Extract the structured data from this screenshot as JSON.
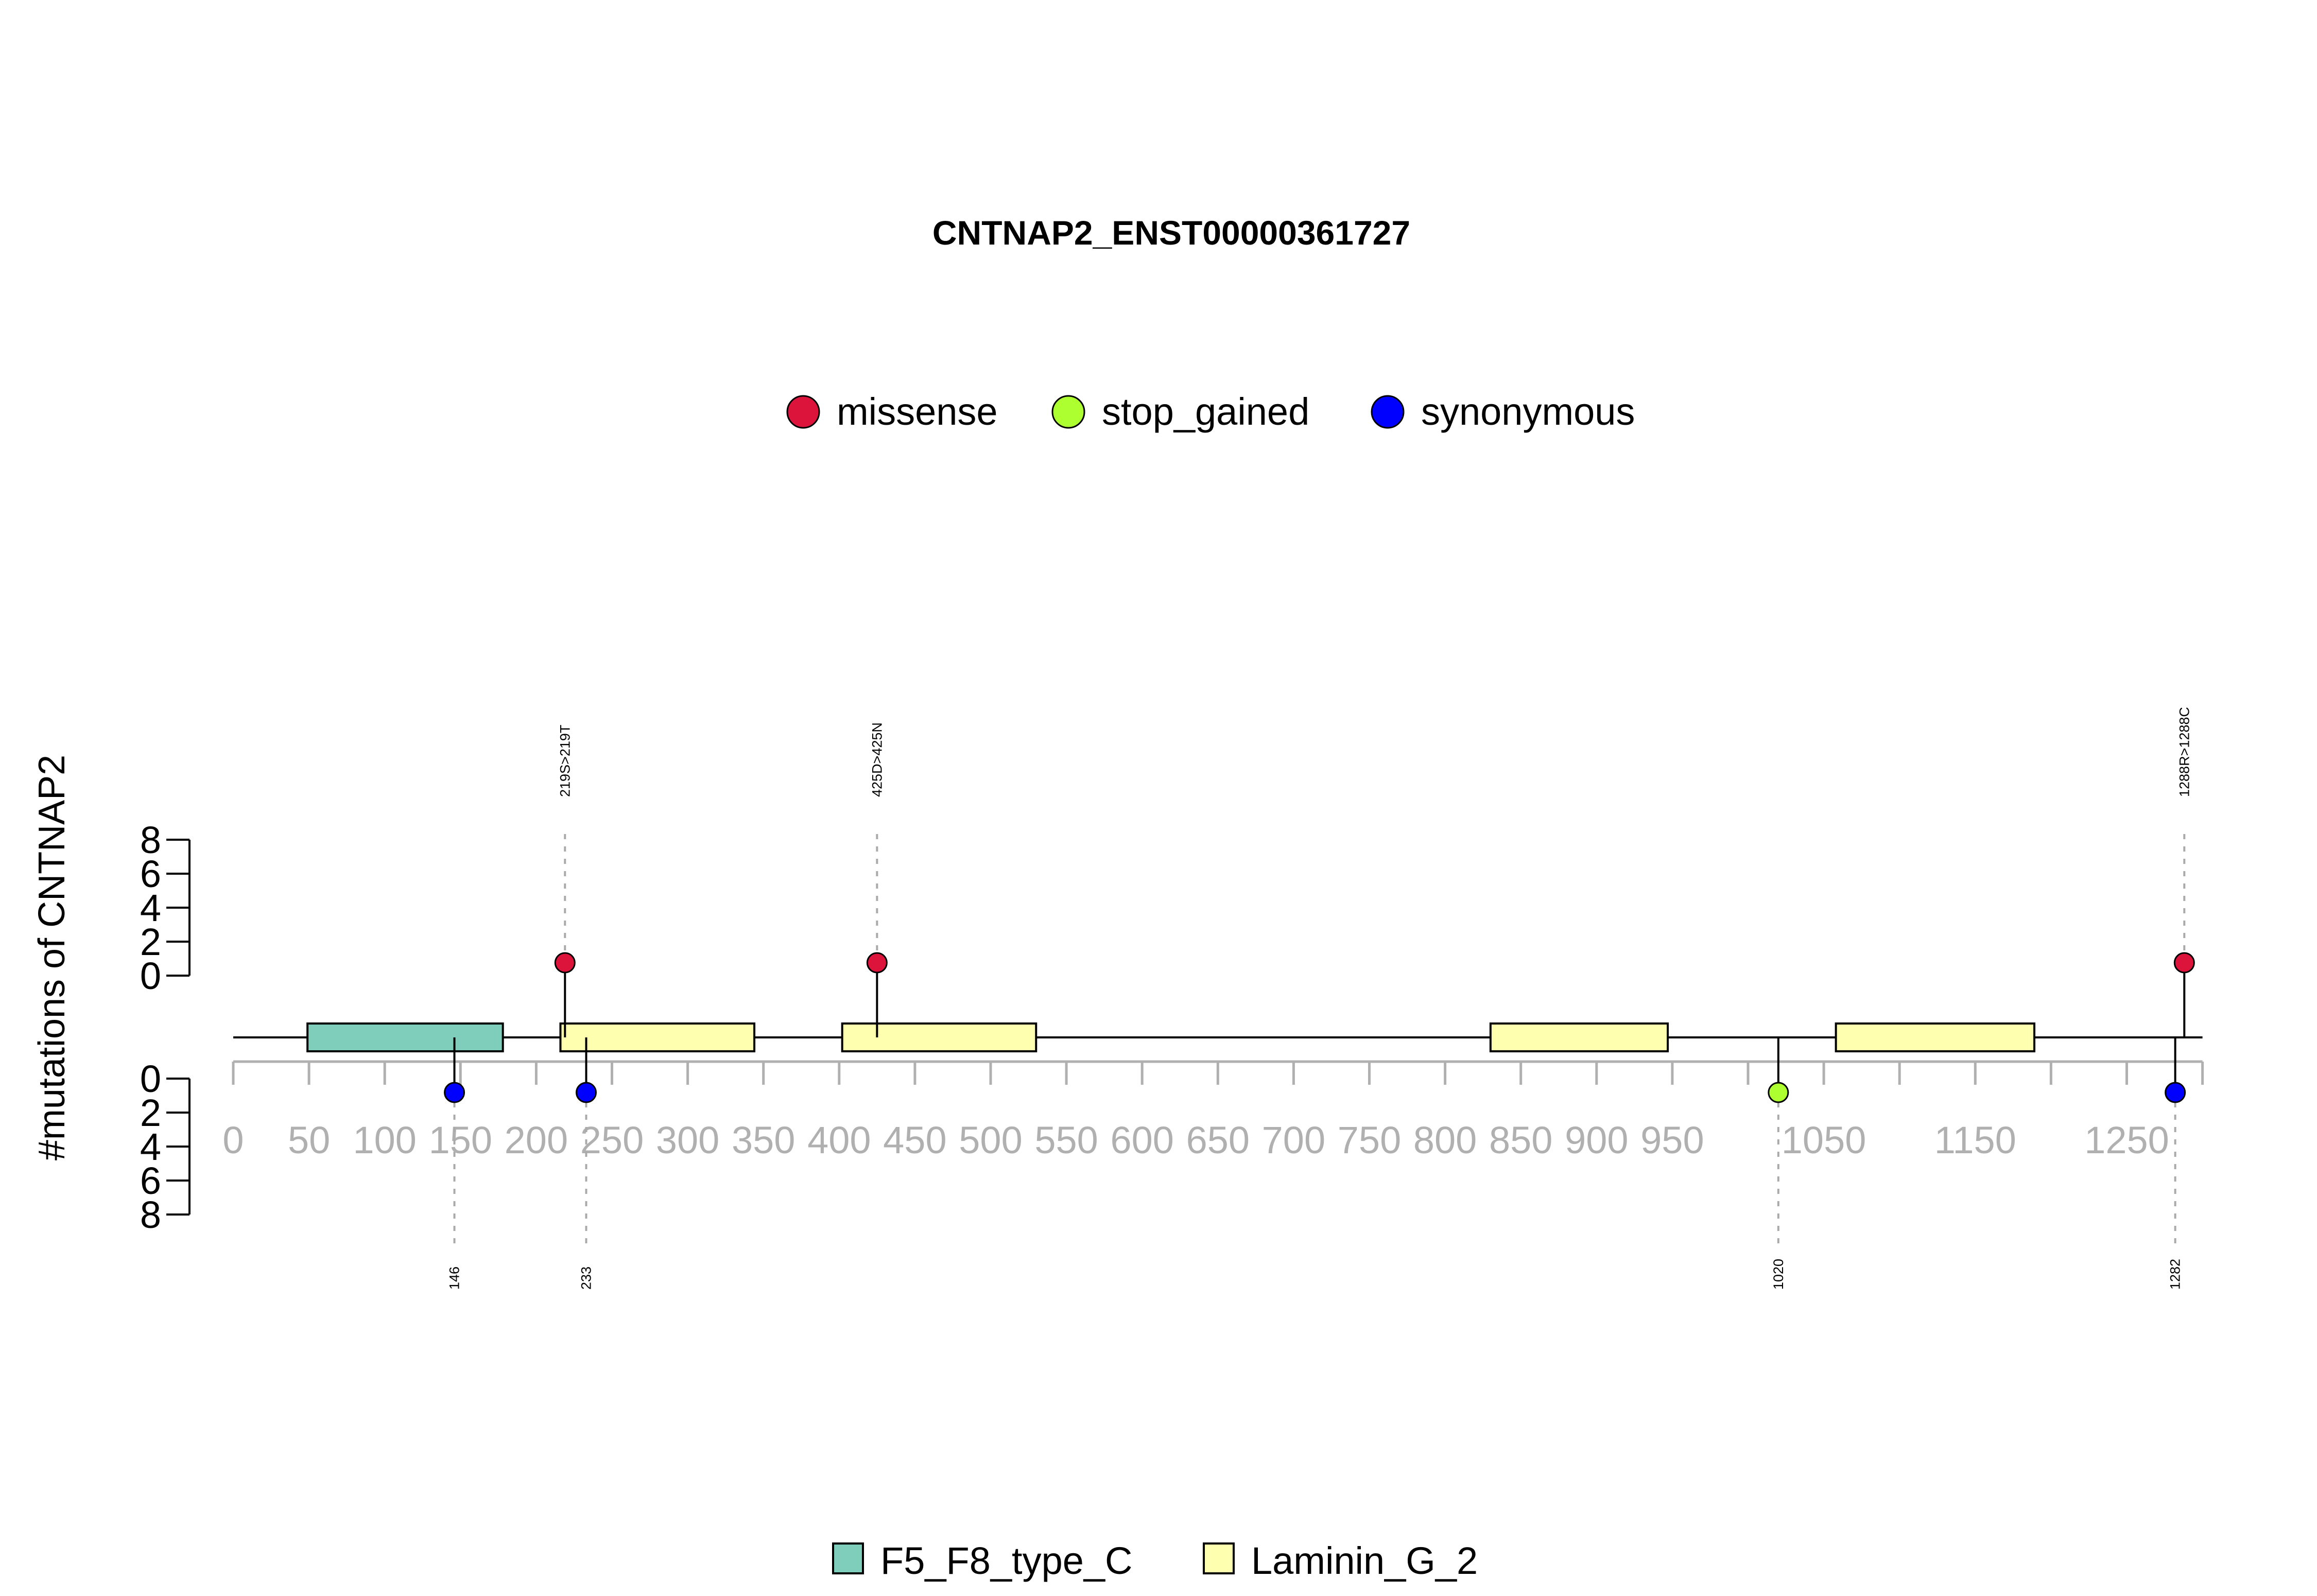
{
  "chart_data": {
    "type": "lollipop",
    "title": "CNTNAP2_ENST00000361727",
    "ylabel": "#mutations of CNTNAP2",
    "x_range": [
      0,
      1300
    ],
    "x_ticks": [
      0,
      50,
      100,
      150,
      200,
      250,
      300,
      350,
      400,
      450,
      500,
      550,
      600,
      650,
      700,
      750,
      800,
      850,
      900,
      950,
      1000,
      1050,
      1100,
      1150,
      1200,
      1250,
      1300
    ],
    "x_tick_labels": [
      "0",
      "50",
      "100",
      "150",
      "200",
      "250",
      "300",
      "350",
      "400",
      "450",
      "500",
      "550",
      "600",
      "650",
      "700",
      "750",
      "800",
      "850",
      "900",
      "950",
      "",
      "1050",
      "",
      "1150",
      "",
      "1250",
      ""
    ],
    "y_range": [
      0,
      8
    ],
    "y_ticks": [
      0,
      2,
      4,
      6,
      8
    ],
    "upper_mutations": [
      {
        "position": 219,
        "count": 1,
        "type": "missense",
        "label": "219S>219T"
      },
      {
        "position": 425,
        "count": 1,
        "type": "missense",
        "label": "425D>425N"
      },
      {
        "position": 1288,
        "count": 1,
        "type": "missense",
        "label": "1288R>1288C"
      }
    ],
    "lower_mutations": [
      {
        "position": 146,
        "count": 1,
        "type": "synonymous",
        "label": "146"
      },
      {
        "position": 233,
        "count": 1,
        "type": "synonymous",
        "label": "233"
      },
      {
        "position": 1020,
        "count": 1,
        "type": "stop_gained",
        "label": "1020"
      },
      {
        "position": 1282,
        "count": 1,
        "type": "synonymous",
        "label": "1282"
      }
    ],
    "mutation_legend": [
      {
        "name": "missense",
        "color": "#DC143C"
      },
      {
        "name": "stop_gained",
        "color": "#ADFF2F"
      },
      {
        "name": "synonymous",
        "color": "#0000FF"
      }
    ],
    "domain_legend": [
      {
        "name": "F5_F8_type_C",
        "color": "#7FCDBB"
      },
      {
        "name": "Laminin_G_2",
        "color": "#FFFFB0"
      }
    ],
    "domains": [
      {
        "name": "F5_F8_type_C",
        "start": 49,
        "end": 178
      },
      {
        "name": "Laminin_G_2",
        "start": 216,
        "end": 344
      },
      {
        "name": "Laminin_G_2",
        "start": 402,
        "end": 530
      },
      {
        "name": "Laminin_G_2",
        "start": 830,
        "end": 947
      },
      {
        "name": "Laminin_G_2",
        "start": 1058,
        "end": 1189
      }
    ],
    "colors": {
      "axis_grey": "#B0B0B0",
      "guide_grey": "#AAAAAA"
    }
  }
}
